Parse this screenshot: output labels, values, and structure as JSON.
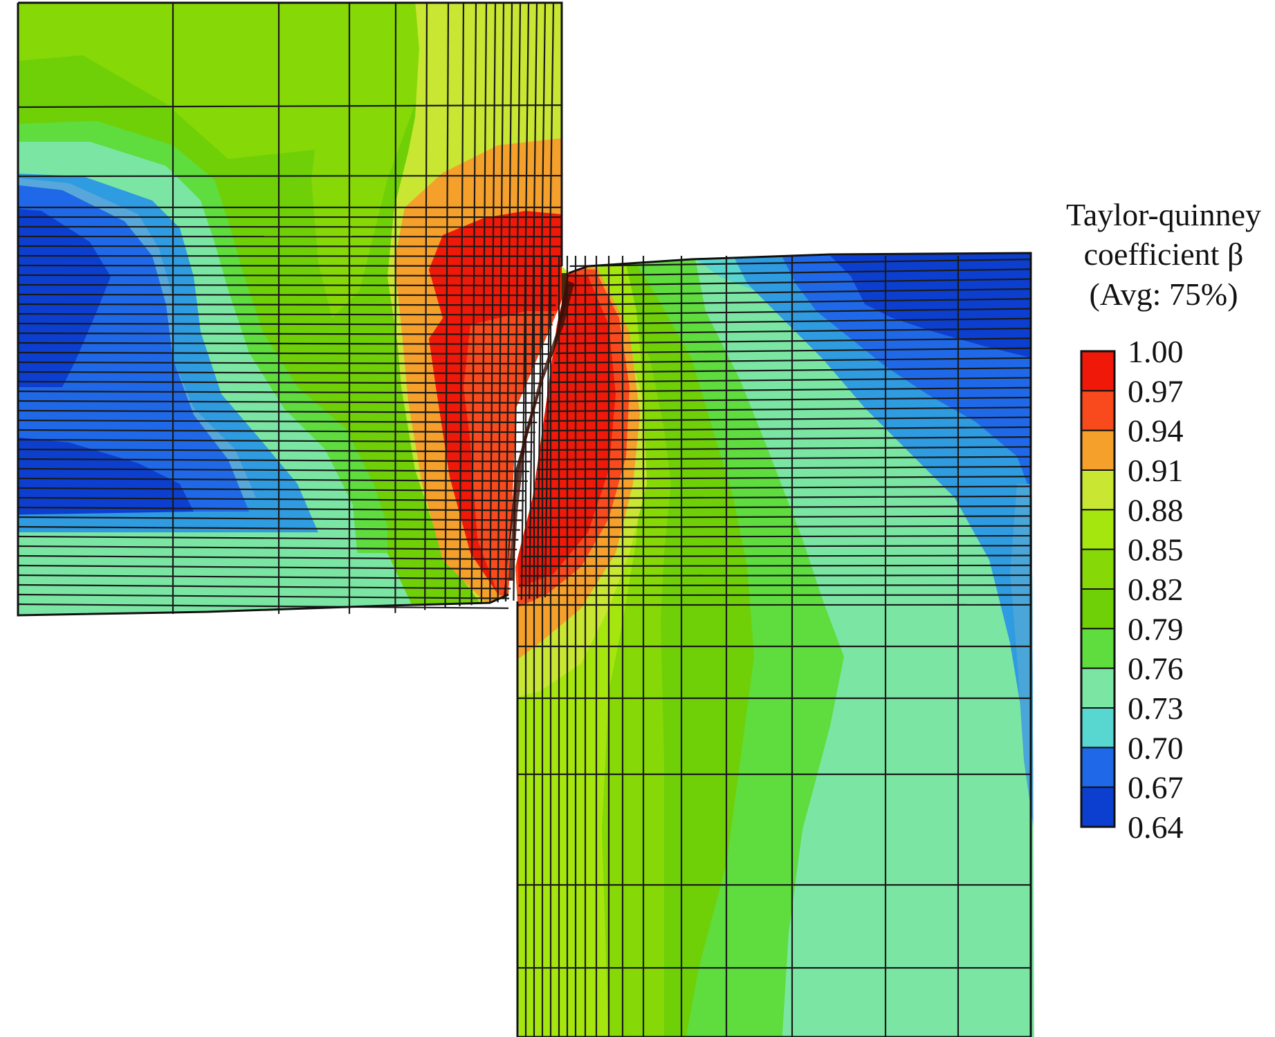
{
  "legend": {
    "title_line1": "Taylor-quinney",
    "title_line2": "coefficient β",
    "title_line3": "(Avg: 75%)",
    "tick_labels": [
      "1.00",
      "0.97",
      "0.94",
      "0.91",
      "0.88",
      "0.85",
      "0.82",
      "0.79",
      "0.76",
      "0.73",
      "0.70",
      "0.67",
      "0.64"
    ],
    "colors": [
      "#f01808",
      "#f84a1c",
      "#f5a02a",
      "#c8e632",
      "#a6e60f",
      "#86d806",
      "#6fd007",
      "#5fdc3e",
      "#7be6a3",
      "#58d6d0",
      "#1f69e8",
      "#0c3fcf"
    ]
  }
}
